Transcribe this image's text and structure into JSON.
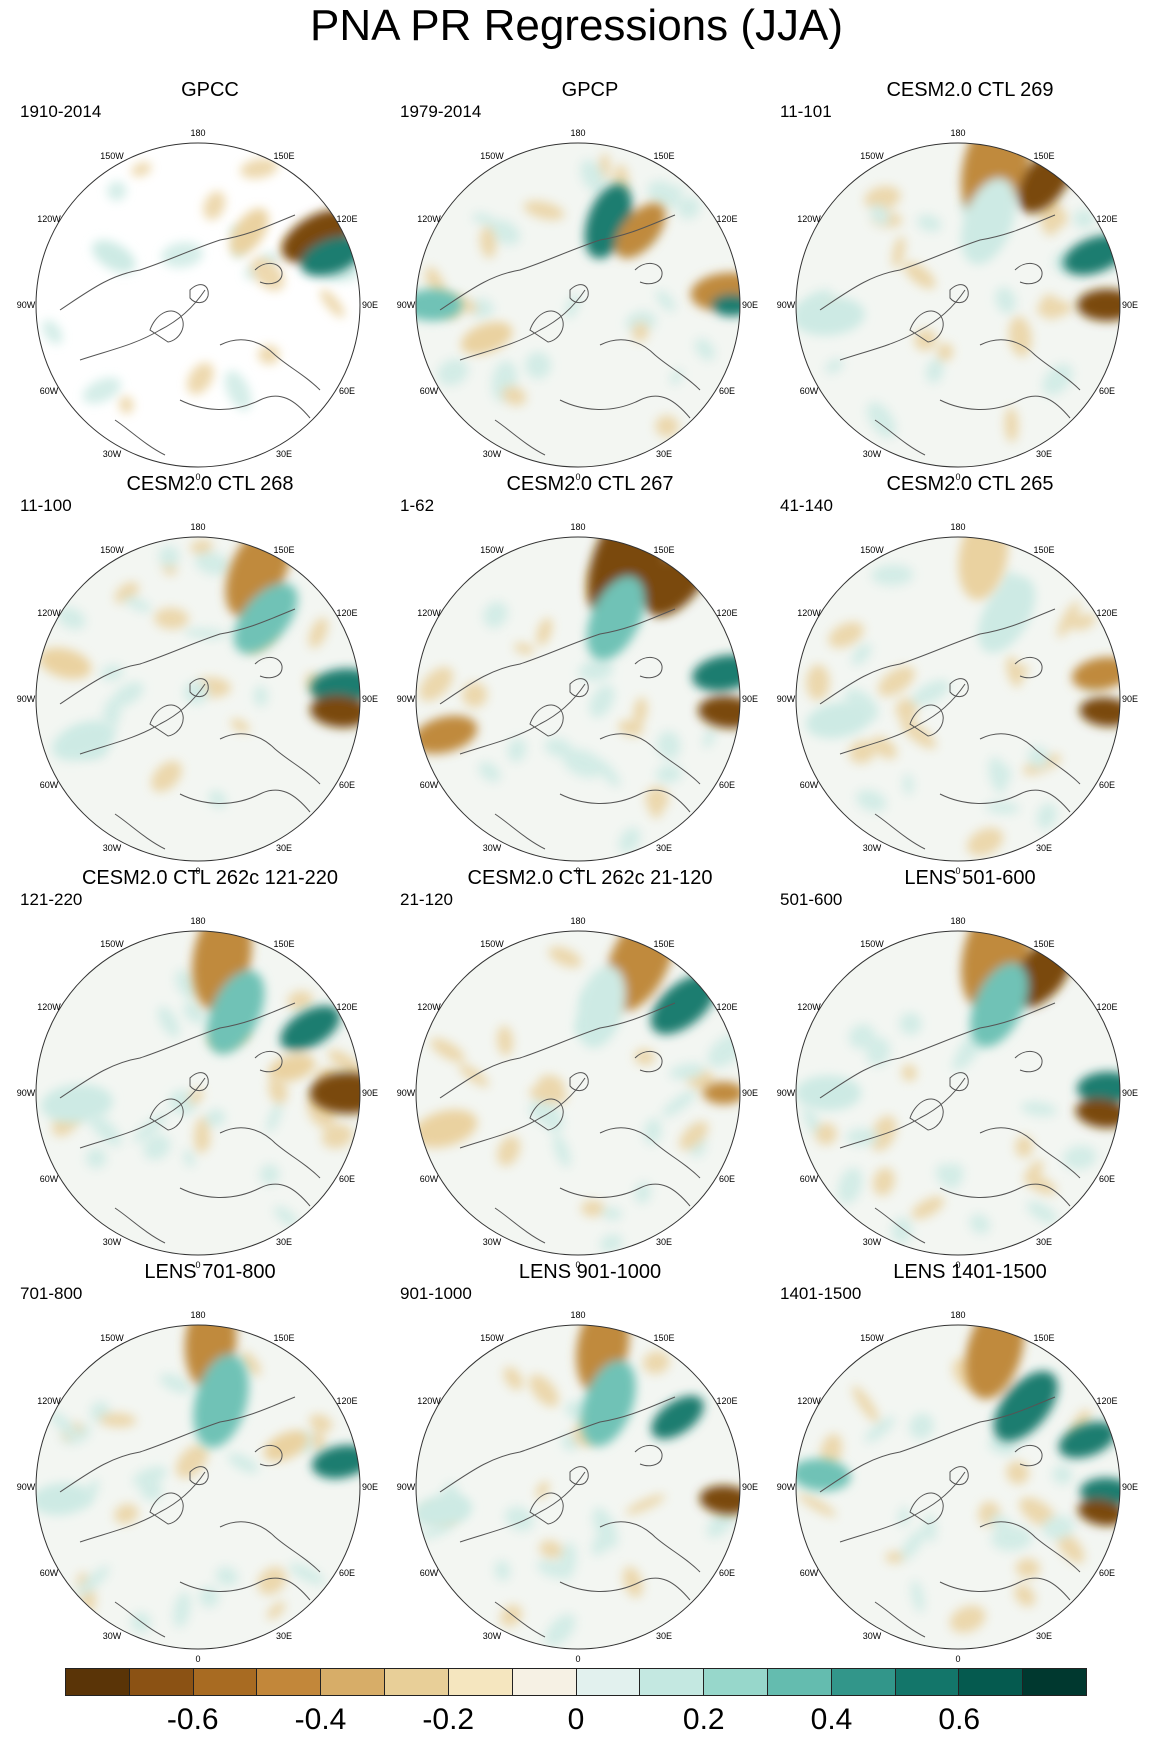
{
  "title": "PNA PR Regressions (JJA)",
  "lon_labels": [
    "180",
    "150E",
    "120E",
    "90E",
    "60E",
    "30E",
    "0",
    "30W",
    "60W",
    "90W",
    "120W",
    "150W"
  ],
  "panels": [
    {
      "title": "GPCC",
      "period": "1910-2014"
    },
    {
      "title": "GPCP",
      "period": "1979-2014"
    },
    {
      "title": "CESM2.0 CTL 269",
      "period": "11-101"
    },
    {
      "title": "CESM2.0 CTL 268",
      "period": "11-100"
    },
    {
      "title": "CESM2.0 CTL 267",
      "period": "1-62"
    },
    {
      "title": "CESM2.0 CTL 265",
      "period": "41-140"
    },
    {
      "title": "CESM2.0 CTL 262c 121-220",
      "period": "121-220"
    },
    {
      "title": "CESM2.0 CTL 262c 21-120",
      "period": "21-120"
    },
    {
      "title": "LENS 501-600",
      "period": "501-600"
    },
    {
      "title": "LENS 701-800",
      "period": "701-800"
    },
    {
      "title": "LENS 901-1000",
      "period": "901-1000"
    },
    {
      "title": "LENS 1401-1500",
      "period": "1401-1500"
    }
  ],
  "colorbar": {
    "colors": [
      "#5a3407",
      "#8b5214",
      "#a86b22",
      "#c2873a",
      "#d7ad68",
      "#e8cf98",
      "#f5e6bf",
      "#f6f1e4",
      "#e2f1ee",
      "#c4e8e1",
      "#97d7cb",
      "#64bcaf",
      "#32968a",
      "#13766a",
      "#055a4f",
      "#00382f"
    ],
    "labels": [
      "-0.6",
      "-0.4",
      "-0.2",
      "0",
      "0.2",
      "0.4",
      "0.6"
    ]
  },
  "colors": {
    "ocean_base": "#f3f6f2",
    "land_line": "#555555",
    "brown_strong": "#7a4a10",
    "brown_mid": "#c08a3e",
    "brown_light": "#ead2a0",
    "teal_strong": "#1b7d70",
    "teal_mid": "#6fc2b6",
    "teal_light": "#cdeae4"
  }
}
